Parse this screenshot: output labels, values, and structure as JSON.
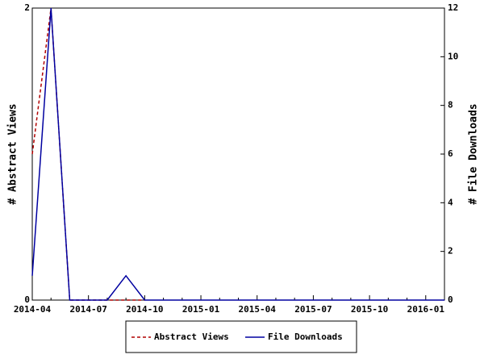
{
  "chart_data": {
    "type": "line",
    "categories": [
      "2014-04",
      null,
      null,
      "2014-07",
      null,
      null,
      "2014-10",
      null,
      null,
      "2015-01",
      null,
      null,
      "2015-04",
      null,
      null,
      "2015-07",
      null,
      null,
      "2015-10",
      null,
      null,
      "2016-01",
      null
    ],
    "series": [
      {
        "name": "Abstract Views",
        "color": "#b00000",
        "dash": true,
        "axis": "y",
        "values": [
          1,
          2,
          0,
          0,
          0,
          0,
          0,
          null,
          null,
          null,
          null,
          null,
          null,
          null,
          null,
          null,
          null,
          null,
          null,
          null,
          null,
          null,
          null
        ]
      },
      {
        "name": "File Downloads",
        "color": "#0000a0",
        "dash": false,
        "axis": "y2",
        "values": [
          1,
          12,
          0,
          0,
          0,
          1,
          0,
          0,
          0,
          0,
          0,
          0,
          0,
          0,
          0,
          0,
          0,
          0,
          0,
          0,
          0,
          0,
          0
        ]
      }
    ],
    "ylabel": "# Abstract Views",
    "y2label": "# File Downloads",
    "ylim": [
      0,
      2
    ],
    "yticks": [
      0,
      2
    ],
    "y2lim": [
      0,
      12
    ],
    "y2ticks": [
      0,
      2,
      4,
      6,
      8,
      10,
      12
    ],
    "legend": "bottom"
  }
}
